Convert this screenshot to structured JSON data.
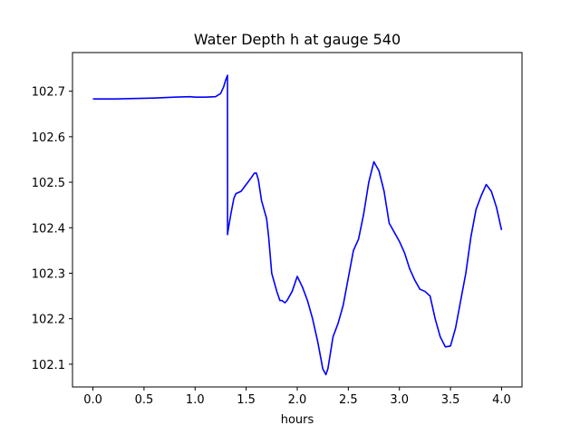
{
  "chart_data": {
    "type": "line",
    "title": "Water Depth h at gauge 540",
    "xlabel": "hours",
    "ylabel": "",
    "xlim": [
      -0.2,
      4.2
    ],
    "ylim": [
      102.05,
      102.785
    ],
    "xticks": [
      0.0,
      0.5,
      1.0,
      1.5,
      2.0,
      2.5,
      3.0,
      3.5,
      4.0
    ],
    "xtick_labels": [
      "0.0",
      "0.5",
      "1.0",
      "1.5",
      "2.0",
      "2.5",
      "3.0",
      "3.5",
      "4.0"
    ],
    "yticks": [
      102.1,
      102.2,
      102.3,
      102.4,
      102.5,
      102.6,
      102.7
    ],
    "ytick_labels": [
      "102.1",
      "102.2",
      "102.3",
      "102.4",
      "102.5",
      "102.6",
      "102.7"
    ],
    "grid": false,
    "series": [
      {
        "color": "#0000ff",
        "x": [
          0.0,
          0.2,
          0.4,
          0.6,
          0.8,
          0.95,
          1.0,
          1.1,
          1.2,
          1.25,
          1.28,
          1.3,
          1.317,
          1.318,
          1.32,
          1.35,
          1.38,
          1.4,
          1.45,
          1.5,
          1.55,
          1.58,
          1.6,
          1.62,
          1.65,
          1.7,
          1.72,
          1.75,
          1.8,
          1.83,
          1.85,
          1.88,
          1.9,
          1.95,
          2.0,
          2.05,
          2.1,
          2.15,
          2.2,
          2.25,
          2.28,
          2.3,
          2.35,
          2.4,
          2.45,
          2.5,
          2.55,
          2.6,
          2.65,
          2.7,
          2.75,
          2.8,
          2.85,
          2.9,
          2.95,
          3.0,
          3.05,
          3.1,
          3.15,
          3.2,
          3.25,
          3.3,
          3.35,
          3.4,
          3.45,
          3.5,
          3.55,
          3.6,
          3.65,
          3.7,
          3.75,
          3.8,
          3.85,
          3.9,
          3.95,
          4.0
        ],
        "y": [
          102.683,
          102.683,
          102.684,
          102.685,
          102.687,
          102.688,
          102.687,
          102.687,
          102.688,
          102.695,
          102.71,
          102.725,
          102.735,
          102.385,
          102.39,
          102.43,
          102.465,
          102.475,
          102.48,
          102.495,
          102.51,
          102.52,
          102.52,
          102.505,
          102.46,
          102.42,
          102.38,
          102.3,
          102.26,
          102.24,
          102.24,
          102.235,
          102.24,
          102.26,
          102.293,
          102.27,
          102.24,
          102.2,
          102.15,
          102.09,
          102.077,
          102.09,
          102.16,
          102.19,
          102.23,
          102.29,
          102.35,
          102.375,
          102.43,
          102.5,
          102.545,
          102.525,
          102.48,
          102.41,
          102.39,
          102.37,
          102.345,
          102.31,
          102.285,
          102.265,
          102.26,
          102.25,
          102.2,
          102.16,
          102.138,
          102.14,
          102.18,
          102.24,
          102.3,
          102.38,
          102.44,
          102.47,
          102.495,
          102.48,
          102.445,
          102.395
        ]
      }
    ]
  }
}
